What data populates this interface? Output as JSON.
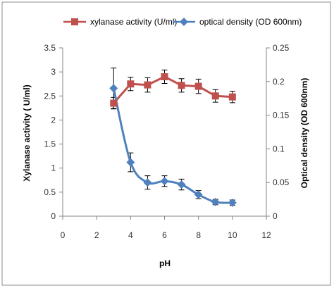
{
  "chart_data": {
    "type": "line",
    "title": "",
    "xlabel": "pH",
    "ylabel": "Xylanase activity ( U/ml)",
    "y2label": "Optical density (OD 600nm)",
    "xlim": [
      0,
      12
    ],
    "ylim": [
      0,
      3.5
    ],
    "y2lim": [
      0,
      0.25
    ],
    "x_ticks": [
      "0",
      "2",
      "4",
      "6",
      "8",
      "10",
      "12"
    ],
    "y_ticks": [
      "0",
      "0.5",
      "1",
      "1.5",
      "2",
      "2.5",
      "3",
      "3.5"
    ],
    "y2_ticks": [
      "0",
      "0.05",
      "0.1",
      "0.15",
      "0.2",
      "0.25"
    ],
    "grid": false,
    "legend_position": "top",
    "x": [
      3,
      4,
      5,
      6,
      7,
      8,
      9,
      10
    ],
    "series": [
      {
        "name": "xylanase activity (U/ml)",
        "axis": "left",
        "marker": "square",
        "color": "#c0504d",
        "smooth": false,
        "values": [
          2.35,
          2.75,
          2.73,
          2.9,
          2.72,
          2.7,
          2.5,
          2.48
        ],
        "errors": [
          0.12,
          0.14,
          0.15,
          0.14,
          0.14,
          0.15,
          0.13,
          0.12
        ]
      },
      {
        "name": "optical density (OD 600nm)",
        "axis": "right",
        "marker": "diamond",
        "color": "#4f81bd",
        "smooth": true,
        "values": [
          0.19,
          0.08,
          0.05,
          0.052,
          0.047,
          0.032,
          0.021,
          0.02
        ],
        "errors": [
          0.03,
          0.014,
          0.01,
          0.008,
          0.008,
          0.006,
          0.004,
          0.004
        ]
      }
    ]
  }
}
